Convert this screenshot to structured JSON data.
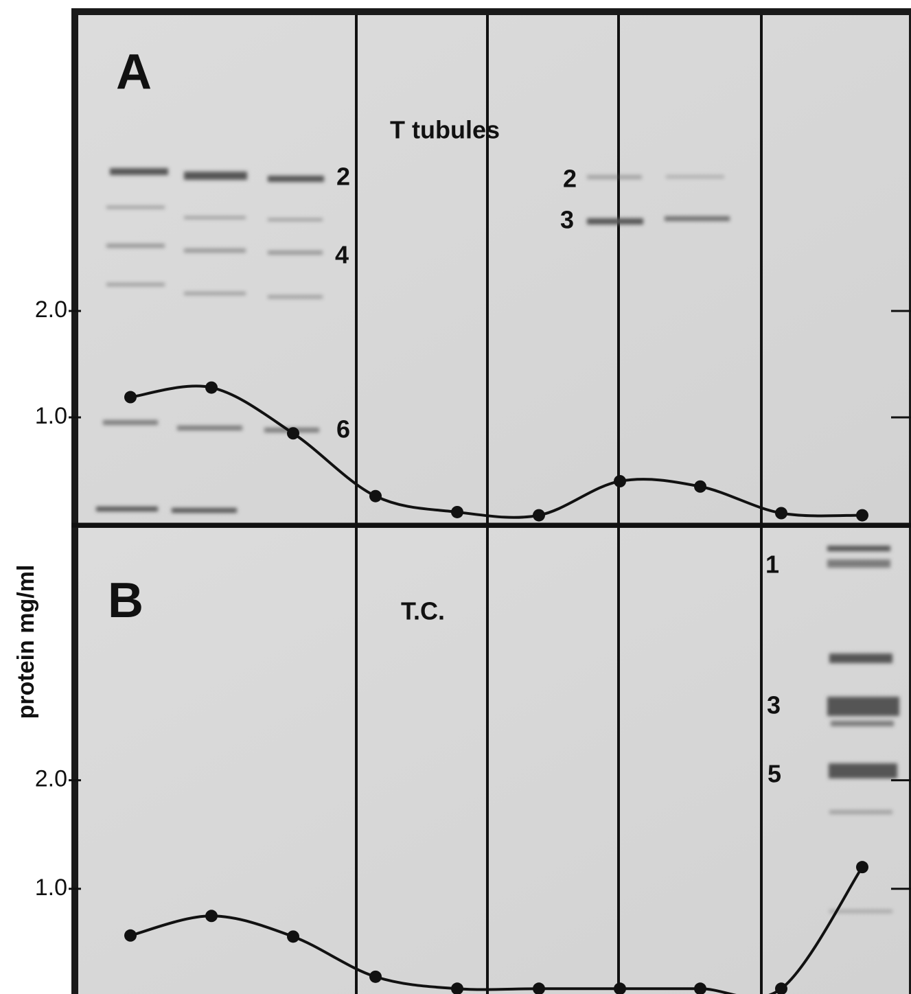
{
  "chart_data": [
    {
      "type": "line",
      "title": "A",
      "subtitle": "T tubules",
      "categories": [
        null,
        null,
        null,
        null,
        null,
        null,
        null,
        null,
        null,
        null
      ],
      "series": [
        {
          "color": "#111111",
          "values": [
            1.19,
            1.28,
            0.85,
            0.26,
            0.11,
            0.08,
            0.4,
            0.35,
            0.1,
            0.08
          ]
        }
      ],
      "ylim": [
        0,
        4.8
      ],
      "yticks": [
        {
          "value": 1,
          "label": "1.0"
        },
        {
          "value": 2,
          "label": "2.0"
        }
      ],
      "annotations": [
        "2",
        "4",
        "6",
        "2",
        "3"
      ]
    },
    {
      "type": "line",
      "title": "B",
      "subtitle": "T.C.",
      "y_label": "protein mg/ml",
      "categories": [
        null,
        null,
        null,
        null,
        null,
        null,
        null,
        null,
        null,
        null
      ],
      "series": [
        {
          "color": "#111111",
          "values": [
            0.57,
            0.75,
            0.56,
            0.19,
            0.08,
            0.08,
            0.08,
            0.08,
            0.08,
            1.2
          ]
        }
      ],
      "ylim": [
        0.05,
        4.35
      ],
      "yticks": [
        {
          "value": 1,
          "label": "1.0"
        },
        {
          "value": 2,
          "label": "2.0"
        }
      ],
      "annotations": [
        "1",
        "3",
        "5"
      ]
    }
  ]
}
